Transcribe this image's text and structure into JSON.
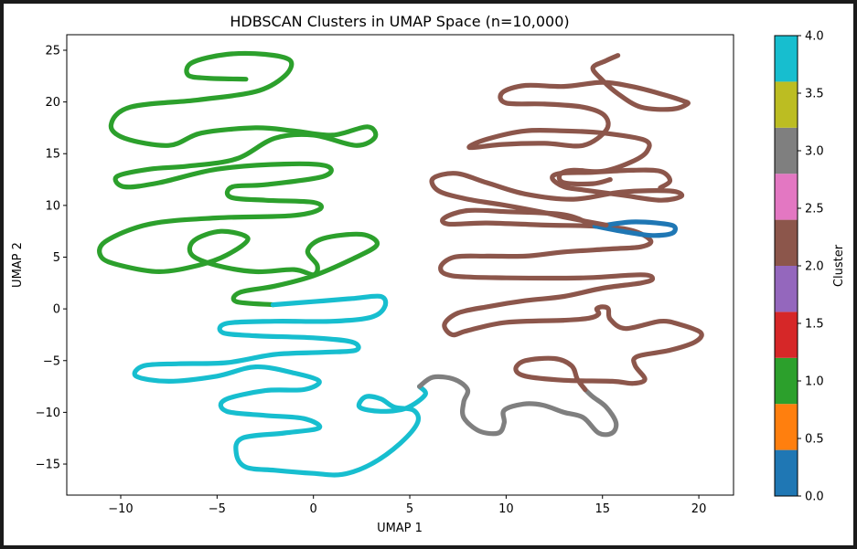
{
  "chart_data": {
    "type": "scatter",
    "title": "HDBSCAN Clusters in UMAP Space (n=10,000)",
    "xlabel": "UMAP 1",
    "ylabel": "UMAP 2",
    "xlim": [
      -12.8,
      21.8
    ],
    "ylim": [
      -18.0,
      26.5
    ],
    "xticks": [
      -10,
      -5,
      0,
      5,
      10,
      15,
      20
    ],
    "xtick_labels": [
      "−10",
      "−5",
      "0",
      "5",
      "10",
      "15",
      "20"
    ],
    "yticks": [
      -15,
      -10,
      -5,
      0,
      5,
      10,
      15,
      20,
      25
    ],
    "ytick_labels": [
      "−15",
      "−10",
      "−5",
      "0",
      "5",
      "10",
      "15",
      "20",
      "25"
    ],
    "grid": false,
    "colorbar": {
      "label": "Cluster",
      "range": [
        0,
        4
      ],
      "ticks": [
        0.0,
        0.5,
        1.0,
        1.5,
        2.0,
        2.5,
        3.0,
        3.5,
        4.0
      ],
      "tick_labels": [
        "0.0",
        "0.5",
        "1.0",
        "1.5",
        "2.0",
        "2.5",
        "3.0",
        "3.5",
        "4.0"
      ],
      "colors": [
        "#1f77b4",
        "#ff7f0e",
        "#2ca02c",
        "#d62728",
        "#9467bd",
        "#8c564b",
        "#e377c2",
        "#7f7f7f",
        "#bcbd22",
        "#17becf"
      ]
    },
    "series": [
      {
        "cluster": 1,
        "color": "#2ca02c",
        "points": [
          [
            -3.5,
            22.2
          ],
          [
            -5.5,
            22.3
          ],
          [
            -6.5,
            22.6
          ],
          [
            -6.3,
            23.8
          ],
          [
            -4.5,
            24.6
          ],
          [
            -2.5,
            24.6
          ],
          [
            -1.2,
            24.0
          ],
          [
            -1.5,
            22.5
          ],
          [
            -3,
            21
          ],
          [
            -6,
            20.2
          ],
          [
            -9.5,
            19.5
          ],
          [
            -10.5,
            17.8
          ],
          [
            -9.8,
            16.5
          ],
          [
            -7.5,
            15.8
          ],
          [
            -5.8,
            17
          ],
          [
            -3,
            17.5
          ],
          [
            -1,
            17.2
          ],
          [
            1,
            16.8
          ],
          [
            2.8,
            17.6
          ],
          [
            3.2,
            16.6
          ],
          [
            2.2,
            15.8
          ],
          [
            0,
            16.8
          ],
          [
            -2,
            16.5
          ],
          [
            -4,
            14.5
          ],
          [
            -6.5,
            13.8
          ],
          [
            -8.5,
            13.5
          ],
          [
            -10.2,
            12.8
          ],
          [
            -9.8,
            11.8
          ],
          [
            -8,
            12.2
          ],
          [
            -5,
            13.5
          ],
          [
            -1.5,
            14
          ],
          [
            0.7,
            13.8
          ],
          [
            0.5,
            12.8
          ],
          [
            -2.5,
            12
          ],
          [
            -4.2,
            11.8
          ],
          [
            -4.3,
            10.8
          ],
          [
            -2.5,
            10.5
          ],
          [
            0,
            10.3
          ],
          [
            0.3,
            9.6
          ],
          [
            -1.2,
            9
          ],
          [
            -5,
            8.8
          ],
          [
            -8.5,
            8.2
          ],
          [
            -10.8,
            6.5
          ],
          [
            -11,
            5
          ],
          [
            -10,
            4.2
          ],
          [
            -8,
            3.6
          ],
          [
            -6,
            4.2
          ],
          [
            -4.5,
            5.2
          ],
          [
            -3.4,
            6.8
          ],
          [
            -4.8,
            7.5
          ],
          [
            -6.2,
            6.6
          ],
          [
            -6.3,
            5.2
          ],
          [
            -5,
            4.2
          ],
          [
            -3,
            3.6
          ],
          [
            -1,
            3.8
          ],
          [
            0,
            3.3
          ],
          [
            0.2,
            4.2
          ],
          [
            -0.3,
            5.6
          ],
          [
            0.5,
            6.8
          ],
          [
            2.5,
            7.2
          ],
          [
            3.3,
            6.2
          ],
          [
            2,
            4.8
          ],
          [
            0,
            3.2
          ],
          [
            -2,
            2.2
          ],
          [
            -3.8,
            1.6
          ],
          [
            -4,
            0.7
          ],
          [
            -2.1,
            0.4
          ]
        ]
      },
      {
        "cluster": 4,
        "color": "#17becf",
        "points": [
          [
            -2.1,
            0.4
          ],
          [
            0,
            0.7
          ],
          [
            2,
            1
          ],
          [
            3.5,
            1.2
          ],
          [
            3.7,
            0.2
          ],
          [
            3,
            -0.8
          ],
          [
            1,
            -1.2
          ],
          [
            -2,
            -1.2
          ],
          [
            -4.5,
            -1.4
          ],
          [
            -4.7,
            -2.3
          ],
          [
            -3,
            -2.6
          ],
          [
            0,
            -2.8
          ],
          [
            2,
            -3.2
          ],
          [
            2.2,
            -4
          ],
          [
            0.5,
            -4.2
          ],
          [
            -2,
            -4.4
          ],
          [
            -4.5,
            -5.2
          ],
          [
            -7,
            -5.3
          ],
          [
            -8.8,
            -5.5
          ],
          [
            -9.2,
            -6.5
          ],
          [
            -7.5,
            -7
          ],
          [
            -5,
            -6.5
          ],
          [
            -3,
            -5.6
          ],
          [
            -1,
            -6.2
          ],
          [
            0.3,
            -7
          ],
          [
            -0.5,
            -7.8
          ],
          [
            -2.5,
            -7.9
          ],
          [
            -4.6,
            -8.8
          ],
          [
            -4.5,
            -9.9
          ],
          [
            -2.5,
            -10.3
          ],
          [
            -0.5,
            -10.6
          ],
          [
            0.3,
            -11.5
          ],
          [
            -1.5,
            -12
          ],
          [
            -3.7,
            -12.5
          ],
          [
            -4,
            -14
          ],
          [
            -3.5,
            -15.3
          ],
          [
            -2,
            -15.6
          ],
          [
            0,
            -15.9
          ],
          [
            1.5,
            -16
          ],
          [
            3,
            -15
          ],
          [
            4.5,
            -13
          ],
          [
            5.4,
            -11
          ],
          [
            5.2,
            -9.8
          ],
          [
            4.2,
            -9.5
          ],
          [
            3.5,
            -8.7
          ],
          [
            2.7,
            -8.5
          ],
          [
            2.4,
            -9.5
          ],
          [
            3.5,
            -9.9
          ],
          [
            4.8,
            -9.6
          ],
          [
            5.8,
            -8.3
          ],
          [
            5.5,
            -7.5
          ]
        ]
      },
      {
        "cluster": 3,
        "color": "#7f7f7f",
        "points": [
          [
            5.5,
            -7.5
          ],
          [
            6.2,
            -6.6
          ],
          [
            7.3,
            -6.8
          ],
          [
            8,
            -7.8
          ],
          [
            7.8,
            -9
          ],
          [
            7.8,
            -10.5
          ],
          [
            8.6,
            -11.8
          ],
          [
            9.6,
            -12
          ],
          [
            9.9,
            -11
          ],
          [
            9.9,
            -9.8
          ],
          [
            10.9,
            -9.2
          ],
          [
            11.9,
            -9.3
          ],
          [
            13,
            -10
          ],
          [
            14,
            -10.5
          ],
          [
            14.8,
            -12
          ],
          [
            15.5,
            -12
          ],
          [
            15.7,
            -11
          ],
          [
            15.2,
            -9.5
          ],
          [
            14.5,
            -8.5
          ],
          [
            14.1,
            -7.8
          ]
        ]
      },
      {
        "cluster": 2,
        "color": "#8c564b",
        "points": [
          [
            14.1,
            -7.8
          ],
          [
            13.7,
            -6.8
          ],
          [
            13.4,
            -5.5
          ],
          [
            12.5,
            -4.8
          ],
          [
            11,
            -5
          ],
          [
            10.5,
            -5.8
          ],
          [
            11,
            -6.5
          ],
          [
            13,
            -6.9
          ],
          [
            15.5,
            -7
          ],
          [
            16.6,
            -7.2
          ],
          [
            17.2,
            -6.8
          ],
          [
            16.7,
            -5.5
          ],
          [
            16.8,
            -4.6
          ],
          [
            18.5,
            -4
          ],
          [
            19.8,
            -3.2
          ],
          [
            20.1,
            -2.3
          ],
          [
            19,
            -1.5
          ],
          [
            18,
            -1.2
          ],
          [
            16.2,
            -1.9
          ],
          [
            15.4,
            -1
          ],
          [
            15.3,
            0
          ],
          [
            15,
            0.2
          ],
          [
            14.7,
            0
          ],
          [
            14.8,
            -0.5
          ],
          [
            14.3,
            -0.9
          ],
          [
            13,
            -1.1
          ],
          [
            10,
            -1.3
          ],
          [
            8,
            -2.1
          ],
          [
            7.2,
            -2.5
          ],
          [
            6.8,
            -1.5
          ],
          [
            7.5,
            -0.4
          ],
          [
            9,
            0.2
          ],
          [
            11,
            0.8
          ],
          [
            13,
            1.2
          ],
          [
            15,
            2
          ],
          [
            17,
            2.5
          ],
          [
            17.6,
            2.9
          ],
          [
            17,
            3.3
          ],
          [
            14,
            3
          ],
          [
            10,
            3
          ],
          [
            7.2,
            3.2
          ],
          [
            6.6,
            4
          ],
          [
            7.3,
            5
          ],
          [
            9,
            5.1
          ],
          [
            11,
            5.1
          ],
          [
            13,
            5.5
          ],
          [
            15.5,
            5.8
          ],
          [
            17,
            6
          ],
          [
            17.5,
            6.6
          ],
          [
            16.5,
            7.6
          ],
          [
            14.5,
            8
          ],
          [
            12,
            8.1
          ],
          [
            9,
            8.3
          ],
          [
            7,
            8.2
          ],
          [
            6.8,
            8.8
          ],
          [
            8,
            9.5
          ],
          [
            10,
            9.4
          ],
          [
            13,
            9.1
          ],
          [
            14.6,
            8
          ]
        ]
      },
      {
        "cluster": 0,
        "color": "#1f77b4",
        "points": [
          [
            14.6,
            8
          ],
          [
            16,
            7.5
          ],
          [
            17.5,
            7.1
          ],
          [
            18.6,
            7.3
          ],
          [
            18.7,
            8
          ],
          [
            17.8,
            8.3
          ],
          [
            16.5,
            8.4
          ],
          [
            15.2,
            8.1
          ]
        ]
      },
      {
        "cluster": 2,
        "color": "#8c564b",
        "points": [
          [
            15.2,
            8.1
          ],
          [
            13.2,
            8.8
          ],
          [
            12,
            9.3
          ],
          [
            10,
            10
          ],
          [
            8,
            10.6
          ],
          [
            6.5,
            11.4
          ],
          [
            6.2,
            12.6
          ],
          [
            7.4,
            13.1
          ],
          [
            9,
            12.2
          ],
          [
            11,
            11.1
          ],
          [
            13.5,
            10.6
          ],
          [
            16,
            11.3
          ],
          [
            18.5,
            11.4
          ],
          [
            19.1,
            10.9
          ],
          [
            18,
            10.5
          ],
          [
            16,
            11
          ],
          [
            14,
            11.5
          ],
          [
            13,
            11.8
          ],
          [
            12.4,
            12.6
          ],
          [
            12.8,
            13.1
          ],
          [
            14.5,
            13.2
          ],
          [
            16.5,
            13.4
          ],
          [
            18,
            13.3
          ],
          [
            18.5,
            12.4
          ],
          [
            18,
            11.7
          ]
        ]
      },
      {
        "cluster": 2,
        "color": "#8c564b",
        "points": [
          [
            15.4,
            12.5
          ],
          [
            14.5,
            12.1
          ],
          [
            13,
            12.2
          ],
          [
            12.8,
            13
          ],
          [
            13.5,
            13.4
          ],
          [
            15,
            13.3
          ],
          [
            16.5,
            14.2
          ],
          [
            17.3,
            15.2
          ],
          [
            17.2,
            16.3
          ],
          [
            15,
            17
          ],
          [
            13,
            17.2
          ],
          [
            11,
            17.2
          ],
          [
            9,
            16.4
          ],
          [
            8.1,
            15.6
          ],
          [
            9.8,
            15.9
          ],
          [
            12,
            16
          ],
          [
            14,
            15.8
          ],
          [
            15.2,
            17.3
          ],
          [
            15.1,
            18.7
          ],
          [
            14,
            19.5
          ],
          [
            12,
            19.8
          ],
          [
            10,
            19.9
          ],
          [
            9.8,
            20.9
          ],
          [
            11,
            21.6
          ],
          [
            13,
            21.5
          ],
          [
            15,
            21.9
          ],
          [
            16.5,
            21.5
          ],
          [
            18,
            20.8
          ],
          [
            19.2,
            20.1
          ],
          [
            19.4,
            19.8
          ],
          [
            18.6,
            19.3
          ],
          [
            17,
            19.5
          ],
          [
            15.8,
            20.8
          ],
          [
            15,
            22.1
          ],
          [
            14.5,
            23.3
          ],
          [
            15.2,
            24
          ],
          [
            15.8,
            24.5
          ]
        ]
      }
    ]
  }
}
